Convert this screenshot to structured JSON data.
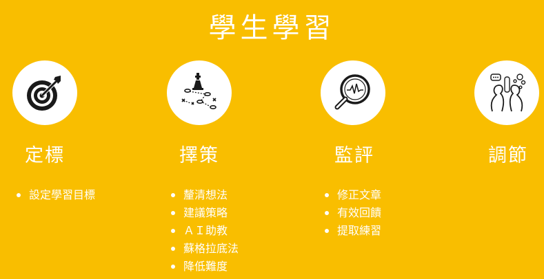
{
  "title": "學生學習",
  "colors": {
    "background": "#F9BE00",
    "text": "#FFFFFF",
    "circle": "#FFFFFF",
    "icon": "#1A1A1A"
  },
  "steps": [
    {
      "label": "定標",
      "icon": "target-icon",
      "bullets": [
        "設定學習目標"
      ]
    },
    {
      "label": "擇策",
      "icon": "chess-strategy-icon",
      "bullets": [
        "釐清想法",
        "建議策略",
        "ＡＩ助教",
        "蘇格拉底法",
        "降低難度"
      ]
    },
    {
      "label": "監評",
      "icon": "magnifier-icon",
      "bullets": [
        "修正文章",
        "有效回饋",
        "提取練習"
      ]
    },
    {
      "label": "調節",
      "icon": "thinking-people-icon",
      "bullets": []
    }
  ]
}
